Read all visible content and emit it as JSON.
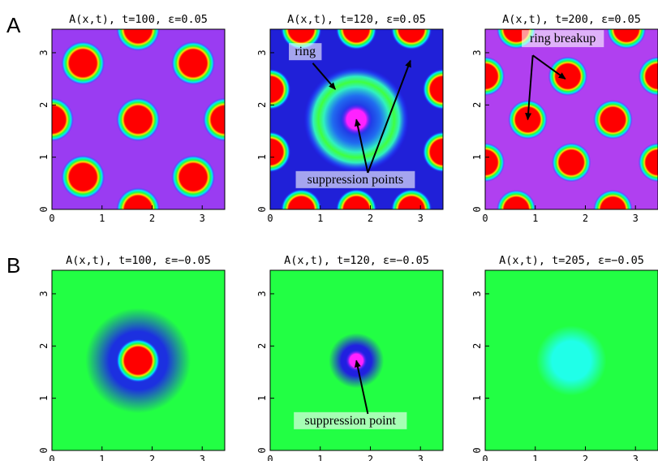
{
  "figure": {
    "row_labels": [
      "A",
      "B"
    ]
  },
  "chart_data": [
    {
      "type": "heatmap",
      "row": 0,
      "col": 0,
      "title": "A(x,t),  t=100,  ε=0.05",
      "xlim": [
        0,
        3.45
      ],
      "ylim": [
        0,
        3.45
      ],
      "x_ticks": [
        "0",
        "1",
        "2",
        "3"
      ],
      "y_ticks": [
        "0",
        "1",
        "2",
        "3"
      ],
      "background": "#9a3cf2",
      "spots": [
        {
          "x": 1.72,
          "y": 3.45,
          "r": 0.3
        },
        {
          "x": 0.62,
          "y": 2.8,
          "r": 0.3
        },
        {
          "x": 2.82,
          "y": 2.8,
          "r": 0.3
        },
        {
          "x": 0.0,
          "y": 1.72,
          "r": 0.3
        },
        {
          "x": 1.72,
          "y": 1.72,
          "r": 0.3
        },
        {
          "x": 3.45,
          "y": 1.72,
          "r": 0.3
        },
        {
          "x": 0.62,
          "y": 0.62,
          "r": 0.3
        },
        {
          "x": 2.82,
          "y": 0.62,
          "r": 0.3
        },
        {
          "x": 1.72,
          "y": 0.0,
          "r": 0.3
        }
      ],
      "rings": [],
      "annotations": []
    },
    {
      "type": "heatmap",
      "row": 0,
      "col": 1,
      "title": "A(x,t),  t=120,  ε=0.05",
      "xlim": [
        0,
        3.45
      ],
      "ylim": [
        0,
        3.45
      ],
      "x_ticks": [
        "0",
        "1",
        "2",
        "3"
      ],
      "y_ticks": [
        "0",
        "1",
        "2",
        "3"
      ],
      "background": "#2020d8",
      "spots": [
        {
          "x": 0.62,
          "y": 3.45,
          "r": 0.28
        },
        {
          "x": 1.72,
          "y": 3.45,
          "r": 0.28
        },
        {
          "x": 2.82,
          "y": 3.45,
          "r": 0.28
        },
        {
          "x": 0.0,
          "y": 2.3,
          "r": 0.28
        },
        {
          "x": 3.45,
          "y": 2.3,
          "r": 0.28
        },
        {
          "x": 0.0,
          "y": 1.1,
          "r": 0.28
        },
        {
          "x": 3.45,
          "y": 1.1,
          "r": 0.28
        },
        {
          "x": 0.62,
          "y": 0.0,
          "r": 0.28
        },
        {
          "x": 1.72,
          "y": 0.0,
          "r": 0.28
        },
        {
          "x": 2.82,
          "y": 0.0,
          "r": 0.28
        }
      ],
      "rings": [
        {
          "x": 1.72,
          "y": 1.72,
          "r": 1.05
        }
      ],
      "center_hole": {
        "x": 1.72,
        "y": 1.72,
        "r": 0.32,
        "color": "#ff22ff"
      },
      "annotations": [
        {
          "text": "ring",
          "x": 0.7,
          "y": 2.95
        },
        {
          "text": "suppression points",
          "x": 1.7,
          "y": 0.5
        }
      ]
    },
    {
      "type": "heatmap",
      "row": 0,
      "col": 2,
      "title": "A(x,t),  t=200,  ε=0.05",
      "xlim": [
        0,
        3.45
      ],
      "ylim": [
        0,
        3.45
      ],
      "x_ticks": [
        "0",
        "1",
        "2",
        "3"
      ],
      "y_ticks": [
        "0",
        "1",
        "2",
        "3"
      ],
      "background": "#b040f0",
      "spots": [
        {
          "x": 0.62,
          "y": 3.45,
          "r": 0.27
        },
        {
          "x": 2.82,
          "y": 3.45,
          "r": 0.27
        },
        {
          "x": 0.0,
          "y": 2.55,
          "r": 0.27
        },
        {
          "x": 1.65,
          "y": 2.55,
          "r": 0.27
        },
        {
          "x": 3.45,
          "y": 2.55,
          "r": 0.27
        },
        {
          "x": 0.85,
          "y": 1.72,
          "r": 0.27
        },
        {
          "x": 2.55,
          "y": 1.72,
          "r": 0.27
        },
        {
          "x": 0.0,
          "y": 0.9,
          "r": 0.27
        },
        {
          "x": 1.72,
          "y": 0.9,
          "r": 0.27
        },
        {
          "x": 3.45,
          "y": 0.9,
          "r": 0.27
        },
        {
          "x": 0.62,
          "y": 0.0,
          "r": 0.27
        },
        {
          "x": 2.55,
          "y": 0.0,
          "r": 0.27
        }
      ],
      "rings": [],
      "annotations": [
        {
          "text": "ring breakup",
          "x": 1.55,
          "y": 3.2
        }
      ]
    },
    {
      "type": "heatmap",
      "row": 1,
      "col": 0,
      "title": "A(x,t),  t=100,  ε=−0.05",
      "xlim": [
        0,
        3.45
      ],
      "ylim": [
        0,
        3.45
      ],
      "x_ticks": [
        "0",
        "1",
        "2",
        "3"
      ],
      "y_ticks": [
        "0",
        "1",
        "2",
        "3"
      ],
      "background": "#22ff44",
      "spots": [
        {
          "x": 1.72,
          "y": 1.72,
          "r": 0.3
        }
      ],
      "halo": {
        "x": 1.72,
        "y": 1.72,
        "r": 1.05,
        "color": "#1c30e0"
      },
      "rings": [],
      "annotations": []
    },
    {
      "type": "heatmap",
      "row": 1,
      "col": 1,
      "title": "A(x,t),  t=120,  ε=−0.05",
      "xlim": [
        0,
        3.45
      ],
      "ylim": [
        0,
        3.45
      ],
      "x_ticks": [
        "0",
        "1",
        "2",
        "3"
      ],
      "y_ticks": [
        "0",
        "1",
        "2",
        "3"
      ],
      "background": "#22ff44",
      "spots": [],
      "halo": {
        "x": 1.72,
        "y": 1.72,
        "r": 0.55,
        "color": "#2020e0"
      },
      "center_hole": {
        "x": 1.72,
        "y": 1.72,
        "r": 0.22,
        "color": "#ff22ff"
      },
      "rings": [],
      "annotations": [
        {
          "text": "suppression point",
          "x": 1.6,
          "y": 0.5
        }
      ]
    },
    {
      "type": "heatmap",
      "row": 1,
      "col": 2,
      "title": "A(x,t),  t=205,  ε=−0.05",
      "xlim": [
        0,
        3.45
      ],
      "ylim": [
        0,
        3.45
      ],
      "x_ticks": [
        "0",
        "1",
        "2",
        "3"
      ],
      "y_ticks": [
        "0",
        "1",
        "2",
        "3"
      ],
      "background": "#22ff44",
      "spots": [],
      "halo": {
        "x": 1.72,
        "y": 1.72,
        "r": 0.7,
        "color": "#20ffe8"
      },
      "rings": [],
      "annotations": []
    }
  ]
}
